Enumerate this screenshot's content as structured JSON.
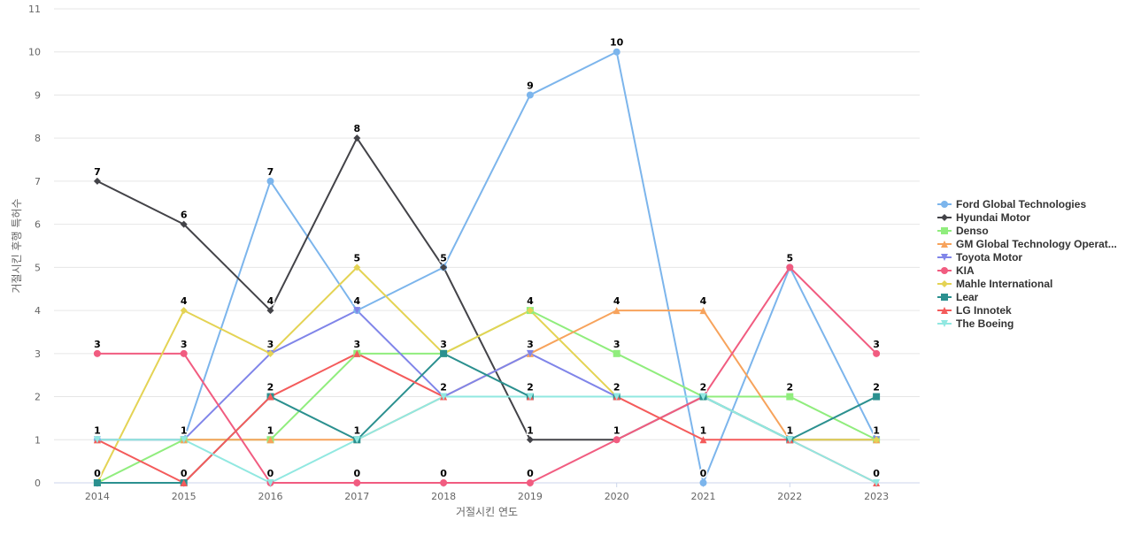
{
  "chart_data": {
    "type": "line",
    "xlabel": "거절시킨 연도",
    "ylabel": "거절시킨 후행 특허수",
    "x": [
      "2014",
      "2015",
      "2016",
      "2017",
      "2018",
      "2019",
      "2020",
      "2021",
      "2022",
      "2023"
    ],
    "ylim": [
      0,
      11
    ],
    "yticks": [
      0,
      1,
      2,
      3,
      4,
      5,
      6,
      7,
      8,
      9,
      10,
      11
    ],
    "grid": true,
    "legend_position": "right",
    "series": [
      {
        "name": "Ford Global Technologies",
        "color": "#7cb5ec",
        "marker": "circle",
        "values": [
          1,
          1,
          7,
          4,
          5,
          9,
          10,
          0,
          5,
          1
        ]
      },
      {
        "name": "Hyundai Motor",
        "color": "#434348",
        "marker": "diamond",
        "values": [
          7,
          6,
          4,
          8,
          5,
          1,
          1,
          2,
          1,
          1
        ]
      },
      {
        "name": "Denso",
        "color": "#90ed7d",
        "marker": "square",
        "values": [
          0,
          1,
          1,
          3,
          3,
          4,
          3,
          2,
          2,
          1
        ]
      },
      {
        "name": "GM Global Technology Operat...",
        "color": "#f7a35c",
        "marker": "triangle",
        "values": [
          1,
          1,
          1,
          1,
          2,
          3,
          4,
          4,
          1,
          1
        ]
      },
      {
        "name": "Toyota Motor",
        "color": "#8085e9",
        "marker": "triangle-down",
        "values": [
          1,
          1,
          3,
          4,
          2,
          3,
          2,
          2,
          1,
          1
        ]
      },
      {
        "name": "KIA",
        "color": "#f15c80",
        "marker": "circle",
        "values": [
          3,
          3,
          0,
          0,
          0,
          0,
          1,
          2,
          5,
          3
        ]
      },
      {
        "name": "Mahle International",
        "color": "#e4d354",
        "marker": "diamond",
        "values": [
          0,
          4,
          3,
          5,
          3,
          4,
          2,
          2,
          1,
          1
        ]
      },
      {
        "name": "Lear",
        "color": "#2b908f",
        "marker": "square",
        "values": [
          0,
          0,
          2,
          1,
          3,
          2,
          2,
          2,
          1,
          2
        ]
      },
      {
        "name": "LG Innotek",
        "color": "#f45b5b",
        "marker": "triangle",
        "values": [
          1,
          0,
          2,
          3,
          2,
          2,
          2,
          1,
          1,
          0
        ]
      },
      {
        "name": "The Boeing",
        "color": "#91e8e1",
        "marker": "triangle-down",
        "values": [
          1,
          1,
          0,
          1,
          2,
          2,
          2,
          2,
          1,
          0
        ]
      }
    ],
    "data_labels": [
      7,
      6,
      7,
      8,
      5,
      9,
      10,
      4,
      5,
      3
    ]
  }
}
